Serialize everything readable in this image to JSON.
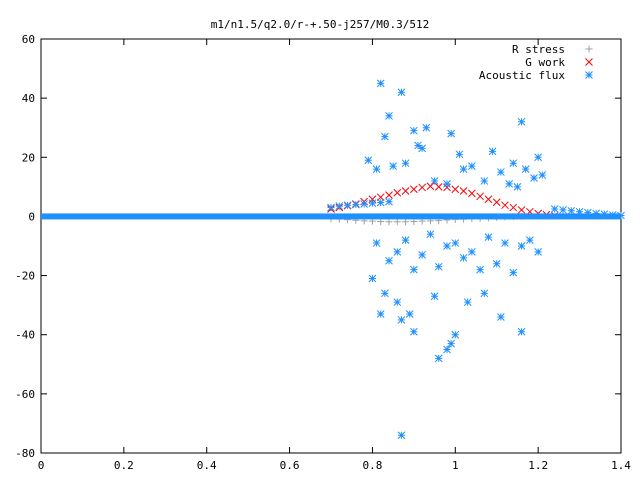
{
  "chart_data": {
    "type": "scatter",
    "title": "m1/n1.5/q2.0/r-+.50-j257/M0.3/512",
    "xlabel": "",
    "ylabel": "",
    "xlim": [
      0,
      1.4
    ],
    "ylim": [
      -80,
      60
    ],
    "x_ticks": [
      0,
      0.2,
      0.4,
      0.6,
      0.8,
      1,
      1.2,
      1.4
    ],
    "x_tick_labels": [
      "0",
      "0.2",
      "0.4",
      "0.6",
      "0.8",
      "1",
      "1.2",
      "1.4"
    ],
    "y_ticks": [
      -80,
      -60,
      -40,
      -20,
      0,
      20,
      40,
      60
    ],
    "y_tick_labels": [
      "-80",
      "-60",
      "-40",
      "-20",
      "0",
      "20",
      "40",
      "60"
    ],
    "grid": false,
    "legend_position": "top-right",
    "series": [
      {
        "name": "R stress",
        "color": "#a0a0a0",
        "marker": "plus",
        "points": [
          [
            0.7,
            -0.8
          ],
          [
            0.72,
            -0.9
          ],
          [
            0.74,
            -1.1
          ],
          [
            0.76,
            -1.3
          ],
          [
            0.78,
            -1.5
          ],
          [
            0.8,
            -1.6
          ],
          [
            0.82,
            -1.7
          ],
          [
            0.84,
            -1.8
          ],
          [
            0.86,
            -1.8
          ],
          [
            0.88,
            -1.8
          ],
          [
            0.9,
            -1.7
          ],
          [
            0.92,
            -1.6
          ],
          [
            0.94,
            -1.5
          ],
          [
            0.96,
            -1.4
          ],
          [
            0.98,
            -1.2
          ],
          [
            1.0,
            -1.0
          ],
          [
            1.02,
            -0.9
          ],
          [
            1.04,
            -0.7
          ],
          [
            1.06,
            -0.6
          ],
          [
            1.08,
            -0.5
          ],
          [
            1.1,
            -0.3
          ],
          [
            1.12,
            -0.2
          ],
          [
            1.14,
            -0.1
          ],
          [
            1.16,
            0
          ]
        ]
      },
      {
        "name": "G work",
        "color": "#ff0000",
        "marker": "cross",
        "points": [
          [
            0.7,
            2.5
          ],
          [
            0.72,
            3
          ],
          [
            0.74,
            3.6
          ],
          [
            0.76,
            4.2
          ],
          [
            0.78,
            5
          ],
          [
            0.8,
            5.8
          ],
          [
            0.82,
            6.5
          ],
          [
            0.84,
            7.2
          ],
          [
            0.86,
            8
          ],
          [
            0.88,
            8.6
          ],
          [
            0.9,
            9.2
          ],
          [
            0.92,
            9.8
          ],
          [
            0.94,
            10.2
          ],
          [
            0.96,
            10
          ],
          [
            0.98,
            9.8
          ],
          [
            1.0,
            9.2
          ],
          [
            1.02,
            8.6
          ],
          [
            1.04,
            7.8
          ],
          [
            1.06,
            6.8
          ],
          [
            1.08,
            5.8
          ],
          [
            1.1,
            4.8
          ],
          [
            1.12,
            3.8
          ],
          [
            1.14,
            3
          ],
          [
            1.16,
            2.2
          ],
          [
            1.18,
            1.6
          ],
          [
            1.2,
            1
          ],
          [
            1.22,
            0.6
          ],
          [
            1.24,
            0.3
          ]
        ]
      },
      {
        "name": "Acoustic flux",
        "color": "#1e90ff",
        "marker": "star",
        "points": [
          [
            0.82,
            45
          ],
          [
            0.87,
            42
          ],
          [
            0.84,
            34
          ],
          [
            0.83,
            27
          ],
          [
            0.9,
            29
          ],
          [
            0.93,
            30
          ],
          [
            0.91,
            24
          ],
          [
            0.92,
            23
          ],
          [
            0.99,
            28
          ],
          [
            1.16,
            32
          ],
          [
            1.2,
            20
          ],
          [
            1.09,
            22
          ],
          [
            1.14,
            18
          ],
          [
            1.04,
            17
          ],
          [
            1.01,
            21
          ],
          [
            1.02,
            16
          ],
          [
            0.79,
            19
          ],
          [
            0.81,
            16
          ],
          [
            0.85,
            17
          ],
          [
            0.88,
            18
          ],
          [
            1.11,
            15
          ],
          [
            1.17,
            16
          ],
          [
            1.19,
            13
          ],
          [
            1.21,
            14
          ],
          [
            1.07,
            12
          ],
          [
            1.13,
            11
          ],
          [
            1.15,
            10
          ],
          [
            0.95,
            12
          ],
          [
            0.98,
            11
          ],
          [
            0.81,
            -9
          ],
          [
            0.84,
            -15
          ],
          [
            0.86,
            -12
          ],
          [
            0.88,
            -8
          ],
          [
            0.9,
            -18
          ],
          [
            0.92,
            -13
          ],
          [
            0.94,
            -6
          ],
          [
            0.96,
            -17
          ],
          [
            0.98,
            -10
          ],
          [
            1.0,
            -9
          ],
          [
            1.02,
            -14
          ],
          [
            1.04,
            -12
          ],
          [
            1.06,
            -18
          ],
          [
            1.08,
            -7
          ],
          [
            1.1,
            -16
          ],
          [
            1.12,
            -9
          ],
          [
            1.14,
            -19
          ],
          [
            1.16,
            -10
          ],
          [
            1.18,
            -8
          ],
          [
            1.2,
            -12
          ],
          [
            0.8,
            -21
          ],
          [
            0.83,
            -26
          ],
          [
            0.86,
            -29
          ],
          [
            0.89,
            -33
          ],
          [
            0.95,
            -27
          ],
          [
            1.03,
            -29
          ],
          [
            1.07,
            -26
          ],
          [
            0.82,
            -33
          ],
          [
            0.87,
            -35
          ],
          [
            0.9,
            -39
          ],
          [
            1.11,
            -34
          ],
          [
            1.16,
            -39
          ],
          [
            1.0,
            -40
          ],
          [
            0.99,
            -43
          ],
          [
            0.98,
            -45
          ],
          [
            0.96,
            -48
          ],
          [
            0.87,
            -74
          ],
          [
            0.7,
            3
          ],
          [
            0.72,
            3.5
          ],
          [
            0.74,
            3.8
          ],
          [
            0.76,
            4
          ],
          [
            0.78,
            4.2
          ],
          [
            0.8,
            4.5
          ],
          [
            0.82,
            4.7
          ],
          [
            0.84,
            5
          ],
          [
            1.24,
            2.5
          ],
          [
            1.26,
            2.2
          ],
          [
            1.28,
            1.9
          ],
          [
            1.3,
            1.6
          ],
          [
            1.32,
            1.3
          ],
          [
            1.34,
            1
          ],
          [
            1.36,
            0.8
          ],
          [
            1.38,
            0.5
          ],
          [
            1.4,
            0.3
          ]
        ]
      },
      {
        "name": "",
        "color": "#1e90ff",
        "marker": "star-line",
        "points": [
          [
            0,
            0
          ],
          [
            0.7,
            0
          ],
          [
            1.4,
            0
          ]
        ]
      }
    ]
  }
}
